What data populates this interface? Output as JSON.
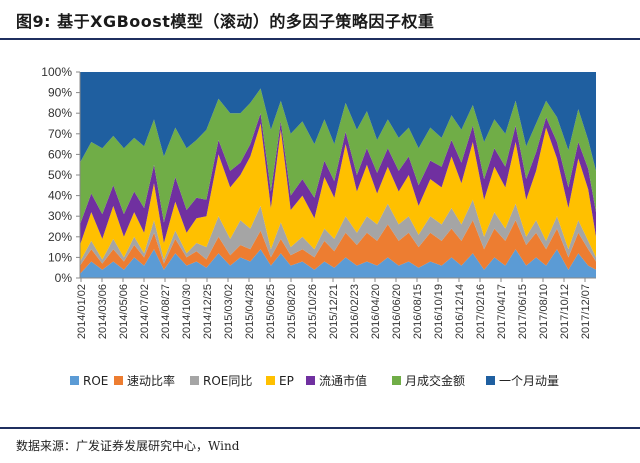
{
  "figure": {
    "title": "图9:  基于XGBoost模型（滚动）的多因子策略因子权重",
    "source": "数据来源：广发证券发展研究中心，Wind"
  },
  "chart_data": {
    "type": "area",
    "stacked": true,
    "title": "",
    "xlabel": "",
    "ylabel": "",
    "ylim": [
      0,
      100
    ],
    "y_unit": "%",
    "y_ticks": [
      "0%",
      "10%",
      "20%",
      "30%",
      "40%",
      "50%",
      "60%",
      "70%",
      "80%",
      "90%",
      "100%"
    ],
    "grid": false,
    "legend_position": "bottom",
    "x_ticks": [
      "2014/01/02",
      "2014/03/06",
      "2014/05/06",
      "2014/07/02",
      "2014/08/27",
      "2014/10/30",
      "2014/12/25",
      "2015/03/02",
      "2015/04/28",
      "2015/06/25",
      "2015/08/20",
      "2015/10/26",
      "2015/12/21",
      "2016/02/23",
      "2016/04/20",
      "2016/06/20",
      "2016/08/15",
      "2016/10/19",
      "2016/12/14",
      "2017/02/16",
      "2017/04/17",
      "2017/06/15",
      "2017/08/10",
      "2017/10/12",
      "2017/12/07"
    ],
    "x": [
      "2014/01/02",
      "2014/02/03",
      "2014/03/06",
      "2014/04/06",
      "2014/05/06",
      "2014/06/04",
      "2014/07/02",
      "2014/07/30",
      "2014/08/27",
      "2014/09/28",
      "2014/10/30",
      "2014/11/27",
      "2014/12/25",
      "2015/01/28",
      "2015/03/02",
      "2015/03/31",
      "2015/04/28",
      "2015/05/27",
      "2015/06/25",
      "2015/07/23",
      "2015/08/20",
      "2015/09/22",
      "2015/10/26",
      "2015/11/23",
      "2015/12/21",
      "2016/01/22",
      "2016/02/23",
      "2016/03/22",
      "2016/04/20",
      "2016/05/20",
      "2016/06/20",
      "2016/07/18",
      "2016/08/15",
      "2016/09/17",
      "2016/10/19",
      "2016/11/16",
      "2016/12/14",
      "2017/01/15",
      "2017/02/16",
      "2017/03/17",
      "2017/04/17",
      "2017/05/16",
      "2017/06/15",
      "2017/07/13",
      "2017/08/10",
      "2017/09/10",
      "2017/10/12",
      "2017/11/09",
      "2017/12/07",
      "2017/12/29"
    ],
    "series": [
      {
        "name": "ROE",
        "color": "#5b9bd5",
        "values": [
          2,
          8,
          4,
          8,
          4,
          10,
          6,
          14,
          4,
          12,
          6,
          8,
          5,
          12,
          6,
          10,
          8,
          14,
          6,
          12,
          6,
          8,
          4,
          8,
          5,
          10,
          6,
          8,
          6,
          10,
          6,
          8,
          5,
          8,
          6,
          10,
          6,
          12,
          4,
          10,
          6,
          14,
          6,
          10,
          6,
          14,
          4,
          12,
          6,
          4
        ]
      },
      {
        "name": "速动比率",
        "color": "#ed7d31",
        "values": [
          4,
          6,
          3,
          6,
          4,
          6,
          4,
          8,
          3,
          7,
          4,
          5,
          4,
          8,
          5,
          6,
          6,
          9,
          4,
          7,
          5,
          6,
          6,
          10,
          8,
          12,
          10,
          14,
          12,
          16,
          12,
          14,
          10,
          14,
          12,
          14,
          12,
          16,
          10,
          14,
          12,
          14,
          10,
          12,
          8,
          10,
          6,
          10,
          8,
          4
        ]
      },
      {
        "name": "ROE同比",
        "color": "#a5a5a5",
        "values": [
          2,
          4,
          2,
          5,
          2,
          4,
          2,
          6,
          2,
          4,
          2,
          4,
          6,
          10,
          8,
          12,
          10,
          12,
          4,
          8,
          4,
          6,
          4,
          6,
          6,
          8,
          6,
          8,
          8,
          10,
          8,
          8,
          6,
          8,
          8,
          10,
          8,
          10,
          6,
          8,
          6,
          8,
          4,
          6,
          4,
          6,
          4,
          6,
          4,
          2
        ]
      },
      {
        "name": "EP",
        "color": "#ffc000",
        "values": [
          8,
          14,
          10,
          16,
          10,
          12,
          10,
          18,
          8,
          14,
          10,
          12,
          15,
          30,
          25,
          22,
          35,
          40,
          20,
          45,
          18,
          20,
          15,
          25,
          20,
          35,
          20,
          25,
          15,
          18,
          16,
          20,
          14,
          18,
          18,
          25,
          20,
          28,
          18,
          22,
          20,
          30,
          18,
          24,
          55,
          28,
          20,
          30,
          25,
          10
        ]
      },
      {
        "name": "流通市值",
        "color": "#7030a0",
        "values": [
          10,
          9,
          12,
          10,
          11,
          10,
          12,
          9,
          10,
          12,
          11,
          10,
          8,
          7,
          8,
          6,
          6,
          5,
          8,
          4,
          7,
          8,
          10,
          8,
          8,
          6,
          8,
          8,
          10,
          9,
          10,
          9,
          10,
          9,
          10,
          8,
          10,
          8,
          10,
          9,
          10,
          8,
          10,
          9,
          5,
          8,
          10,
          8,
          10,
          12
        ]
      },
      {
        "name": "月成交金额",
        "color": "#70ad47",
        "values": [
          30,
          25,
          32,
          24,
          32,
          26,
          30,
          22,
          32,
          24,
          30,
          28,
          34,
          20,
          28,
          24,
          20,
          12,
          30,
          10,
          30,
          28,
          26,
          20,
          18,
          14,
          22,
          18,
          16,
          14,
          16,
          14,
          18,
          16,
          14,
          12,
          16,
          10,
          18,
          14,
          16,
          12,
          16,
          14,
          8,
          12,
          18,
          16,
          14,
          20
        ]
      },
      {
        "name": "一个月动量",
        "color": "#1f5fa0",
        "values": [
          44,
          34,
          37,
          31,
          37,
          32,
          36,
          23,
          41,
          27,
          37,
          33,
          28,
          13,
          20,
          20,
          15,
          8,
          28,
          14,
          30,
          24,
          35,
          23,
          35,
          15,
          28,
          19,
          33,
          23,
          32,
          27,
          37,
          27,
          32,
          21,
          28,
          16,
          34,
          23,
          30,
          14,
          36,
          25,
          14,
          22,
          38,
          18,
          33,
          48
        ]
      }
    ]
  }
}
